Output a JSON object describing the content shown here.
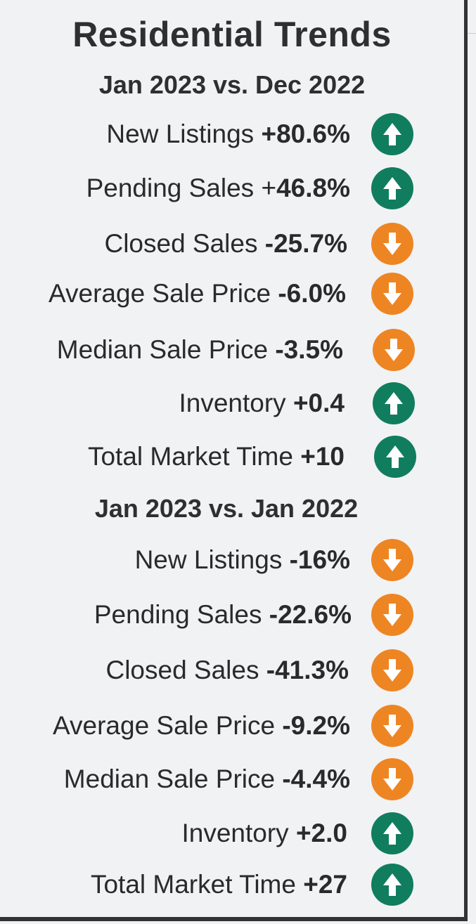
{
  "title": "Residential Trends",
  "colors": {
    "up": "#107d5e",
    "down": "#ee8523"
  },
  "sections": [
    {
      "heading": "Jan 2023 vs. Dec 2022",
      "rows": [
        {
          "label": "New Listings",
          "value": "+80.6%",
          "direction": "up",
          "icon": "arrow-up-icon"
        },
        {
          "label": "Pending Sales +",
          "value": "46.8%",
          "direction": "up",
          "icon": "arrow-up-icon"
        },
        {
          "label": "Closed Sales",
          "value": "-25.7%",
          "direction": "down",
          "icon": "arrow-down-icon"
        },
        {
          "label": "Average Sale Price",
          "value": "-6.0%",
          "direction": "down",
          "icon": "arrow-down-icon"
        },
        {
          "label": "Median Sale Price",
          "value": "-3.5%",
          "direction": "down",
          "icon": "arrow-down-icon"
        },
        {
          "label": "Inventory",
          "value": "+0.4",
          "direction": "up",
          "icon": "arrow-up-icon"
        },
        {
          "label": "Total Market Time",
          "value": "+10",
          "direction": "up",
          "icon": "arrow-up-icon"
        }
      ]
    },
    {
      "heading": "Jan 2023 vs. Jan 2022",
      "rows": [
        {
          "label": "New Listings",
          "value": "-16%",
          "direction": "down",
          "icon": "arrow-down-icon"
        },
        {
          "label": "Pending Sales",
          "value": "-22.6%",
          "direction": "down",
          "icon": "arrow-down-icon"
        },
        {
          "label": "Closed Sales",
          "value": "-41.3%",
          "direction": "down",
          "icon": "arrow-down-icon"
        },
        {
          "label": "Average Sale Price",
          "value": "-9.2%",
          "direction": "down",
          "icon": "arrow-down-icon"
        },
        {
          "label": "Median Sale Price",
          "value": "-4.4%",
          "direction": "down",
          "icon": "arrow-down-icon"
        },
        {
          "label": "Inventory",
          "value": "+2.0",
          "direction": "up",
          "icon": "arrow-up-icon"
        },
        {
          "label": "Total Market Time",
          "value": "+27",
          "direction": "up",
          "icon": "arrow-up-icon"
        }
      ]
    }
  ]
}
